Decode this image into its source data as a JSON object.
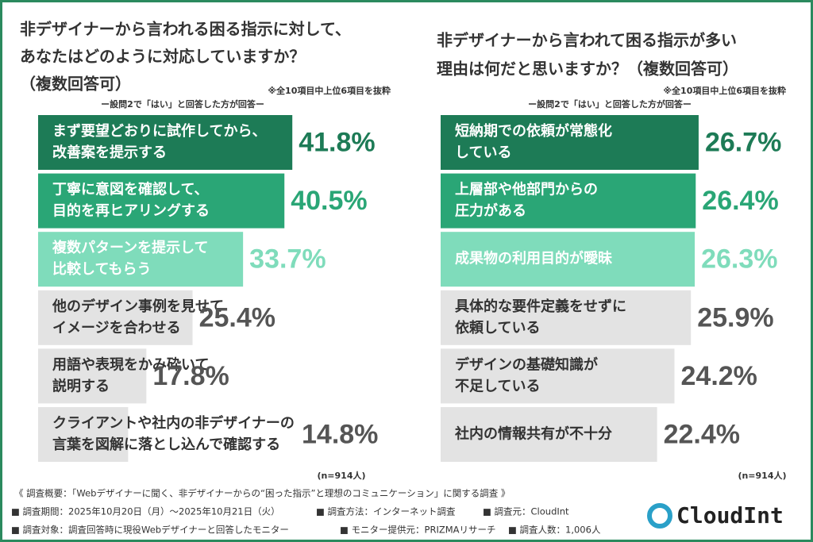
{
  "chart_data": [
    {
      "type": "bar",
      "title": [
        "非デザイナーから言われる困る指示に対して、",
        "あなたはどのように対応していますか？",
        "（複数回答可）"
      ],
      "note": "※全10項目中上位6項目を抜粋",
      "subnote": "ー設問2で「はい」と回答した方が回答ー",
      "n_label": "(n=914人)",
      "categories": [
        [
          "まず要望どおりに試作してから、",
          "改善案を提示する"
        ],
        [
          "丁寧に意図を確認して、",
          "目的を再ヒアリングする"
        ],
        [
          "複数パターンを提示して",
          "比較してもらう"
        ],
        [
          "他のデザイン事例を見せて",
          "イメージを合わせる"
        ],
        [
          "用語や表現をかみ砕いて",
          "説明する"
        ],
        [
          "クライアントや社内の非デザイナーの",
          "言葉を図解に落とし込んで確認する"
        ]
      ],
      "values": [
        41.8,
        40.5,
        33.7,
        25.4,
        17.8,
        14.8
      ],
      "value_labels": [
        "41.8%",
        "40.5%",
        "33.7%",
        "25.4%",
        "17.8%",
        "14.8%"
      ],
      "colors": [
        "#1d7b56",
        "#2aa676",
        "#7fdcbb",
        "#e3e3e3",
        "#e3e3e3",
        "#e3e3e3"
      ],
      "label_colors": [
        "#1d7b56",
        "#2aa676",
        "#7fdcbb",
        "#555555",
        "#555555",
        "#555555"
      ],
      "text_colors": [
        "#ffffff",
        "#ffffff",
        "#ffffff",
        "#333333",
        "#333333",
        "#333333"
      ]
    },
    {
      "type": "bar",
      "title": [
        "非デザイナーから言われて困る指示が多い",
        "理由は何だと思いますか？（複数回答可）"
      ],
      "note": "※全10項目中上位6項目を抜粋",
      "subnote": "ー設問2で「はい」と回答した方が回答ー",
      "n_label": "(n=914人)",
      "categories": [
        [
          "短納期での依頼が常態化",
          "している"
        ],
        [
          "上層部や他部門からの",
          "圧力がある"
        ],
        [
          "成果物の利用目的が曖昧"
        ],
        [
          "具体的な要件定義をせずに",
          "依頼している"
        ],
        [
          "デザインの基礎知識が",
          "不足している"
        ],
        [
          "社内の情報共有が不十分"
        ]
      ],
      "values": [
        26.7,
        26.4,
        26.3,
        25.9,
        24.2,
        22.4
      ],
      "value_labels": [
        "26.7%",
        "26.4%",
        "26.3%",
        "25.9%",
        "24.2%",
        "22.4%"
      ],
      "colors": [
        "#1d7b56",
        "#2aa676",
        "#7fdcbb",
        "#e3e3e3",
        "#e3e3e3",
        "#e3e3e3"
      ],
      "label_colors": [
        "#1d7b56",
        "#2aa676",
        "#7fdcbb",
        "#555555",
        "#555555",
        "#555555"
      ],
      "text_colors": [
        "#ffffff",
        "#ffffff",
        "#ffffff",
        "#333333",
        "#333333",
        "#333333"
      ]
    }
  ],
  "footer": {
    "survey_title": "《 調査概要：「Webデザイナーに聞く、非デザイナーからの“困った指示”と理想のコミュニケーション」に関する調査 》",
    "items": [
      "■ 調査期間：2025年10月20日（月）～2025年10月21日（火）",
      "■ 調査方法：インターネット調査",
      "■ 調査元：CloudInt",
      "■ 調査対象：調査回答時に現役Webデザイナーと回答したモニター",
      "■ モニター提供元：PRIZMAリサーチ",
      "■ 調査人数：1,006人"
    ]
  },
  "logo": "CloudInt"
}
